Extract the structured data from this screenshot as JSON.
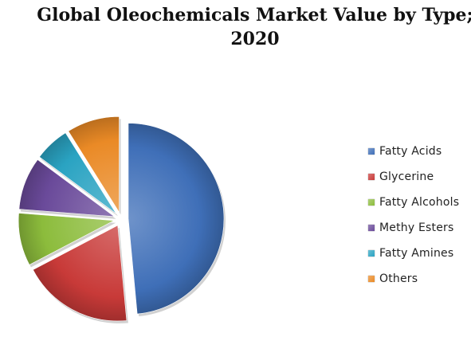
{
  "chart_data": {
    "type": "pie",
    "title": "Global Oleochemicals  Market Value by Type;\n2020",
    "categories": [
      "Fatty Acids",
      "Glycerine",
      "Fatty Alcohols",
      "Methy Esters",
      "Fatty Amines",
      "Others"
    ],
    "values": [
      49,
      19,
      9,
      9,
      6,
      9
    ],
    "colors": [
      "#3f6fb8",
      "#c83a38",
      "#8cbc3c",
      "#6a4a9a",
      "#2aa3c2",
      "#ea8a26"
    ],
    "exploded": true,
    "legend_position": "right"
  }
}
